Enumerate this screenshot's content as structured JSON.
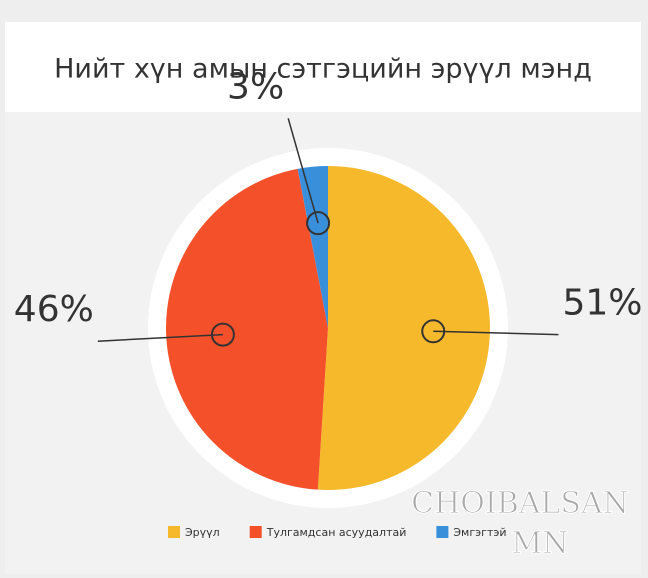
{
  "chart_data": {
    "type": "pie",
    "title": "Нийт хүн амын сэтгэцийн эрүүл мэнд",
    "categories": [
      "Эрүүл",
      "Тулгамдсан асуудалтай",
      "Эмгэгтэй"
    ],
    "values": [
      51,
      46,
      3
    ],
    "value_labels": [
      "51%",
      "46%",
      "3%"
    ],
    "colors": [
      "#f6b92b",
      "#f4502a",
      "#3a8fdb"
    ],
    "legend": "bottom",
    "watermark": [
      "CHOIBALSAN",
      "MN"
    ]
  }
}
